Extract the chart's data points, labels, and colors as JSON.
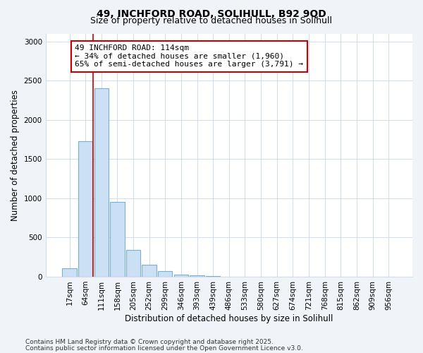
{
  "title_line1": "49, INCHFORD ROAD, SOLIHULL, B92 9QD",
  "title_line2": "Size of property relative to detached houses in Solihull",
  "xlabel": "Distribution of detached houses by size in Solihull",
  "ylabel": "Number of detached properties",
  "categories": [
    "17sqm",
    "64sqm",
    "111sqm",
    "158sqm",
    "205sqm",
    "252sqm",
    "299sqm",
    "346sqm",
    "393sqm",
    "439sqm",
    "486sqm",
    "533sqm",
    "580sqm",
    "627sqm",
    "674sqm",
    "721sqm",
    "768sqm",
    "815sqm",
    "862sqm",
    "909sqm",
    "956sqm"
  ],
  "values": [
    110,
    1730,
    2400,
    950,
    340,
    150,
    70,
    30,
    20,
    5,
    2,
    0,
    0,
    0,
    0,
    0,
    0,
    0,
    0,
    0,
    0
  ],
  "bar_color": "#cce0f5",
  "bar_edge_color": "#7aafd4",
  "vline_x": 1.5,
  "annotation_text": "49 INCHFORD ROAD: 114sqm\n← 34% of detached houses are smaller (1,960)\n65% of semi-detached houses are larger (3,791) →",
  "annotation_box_facecolor": "#ffffff",
  "annotation_box_edgecolor": "#cc0000",
  "vline_color": "#cc0000",
  "footer_line1": "Contains HM Land Registry data © Crown copyright and database right 2025.",
  "footer_line2": "Contains public sector information licensed under the Open Government Licence v3.0.",
  "ylim": [
    0,
    3100
  ],
  "yticks": [
    0,
    500,
    1000,
    1500,
    2000,
    2500,
    3000
  ],
  "title_fontsize": 10,
  "subtitle_fontsize": 9,
  "axis_label_fontsize": 8.5,
  "tick_fontsize": 7.5,
  "annotation_fontsize": 8,
  "footer_fontsize": 6.5,
  "fig_bg_color": "#f0f4f8",
  "plot_bg_color": "#ffffff",
  "grid_color": "#c8d8ec"
}
